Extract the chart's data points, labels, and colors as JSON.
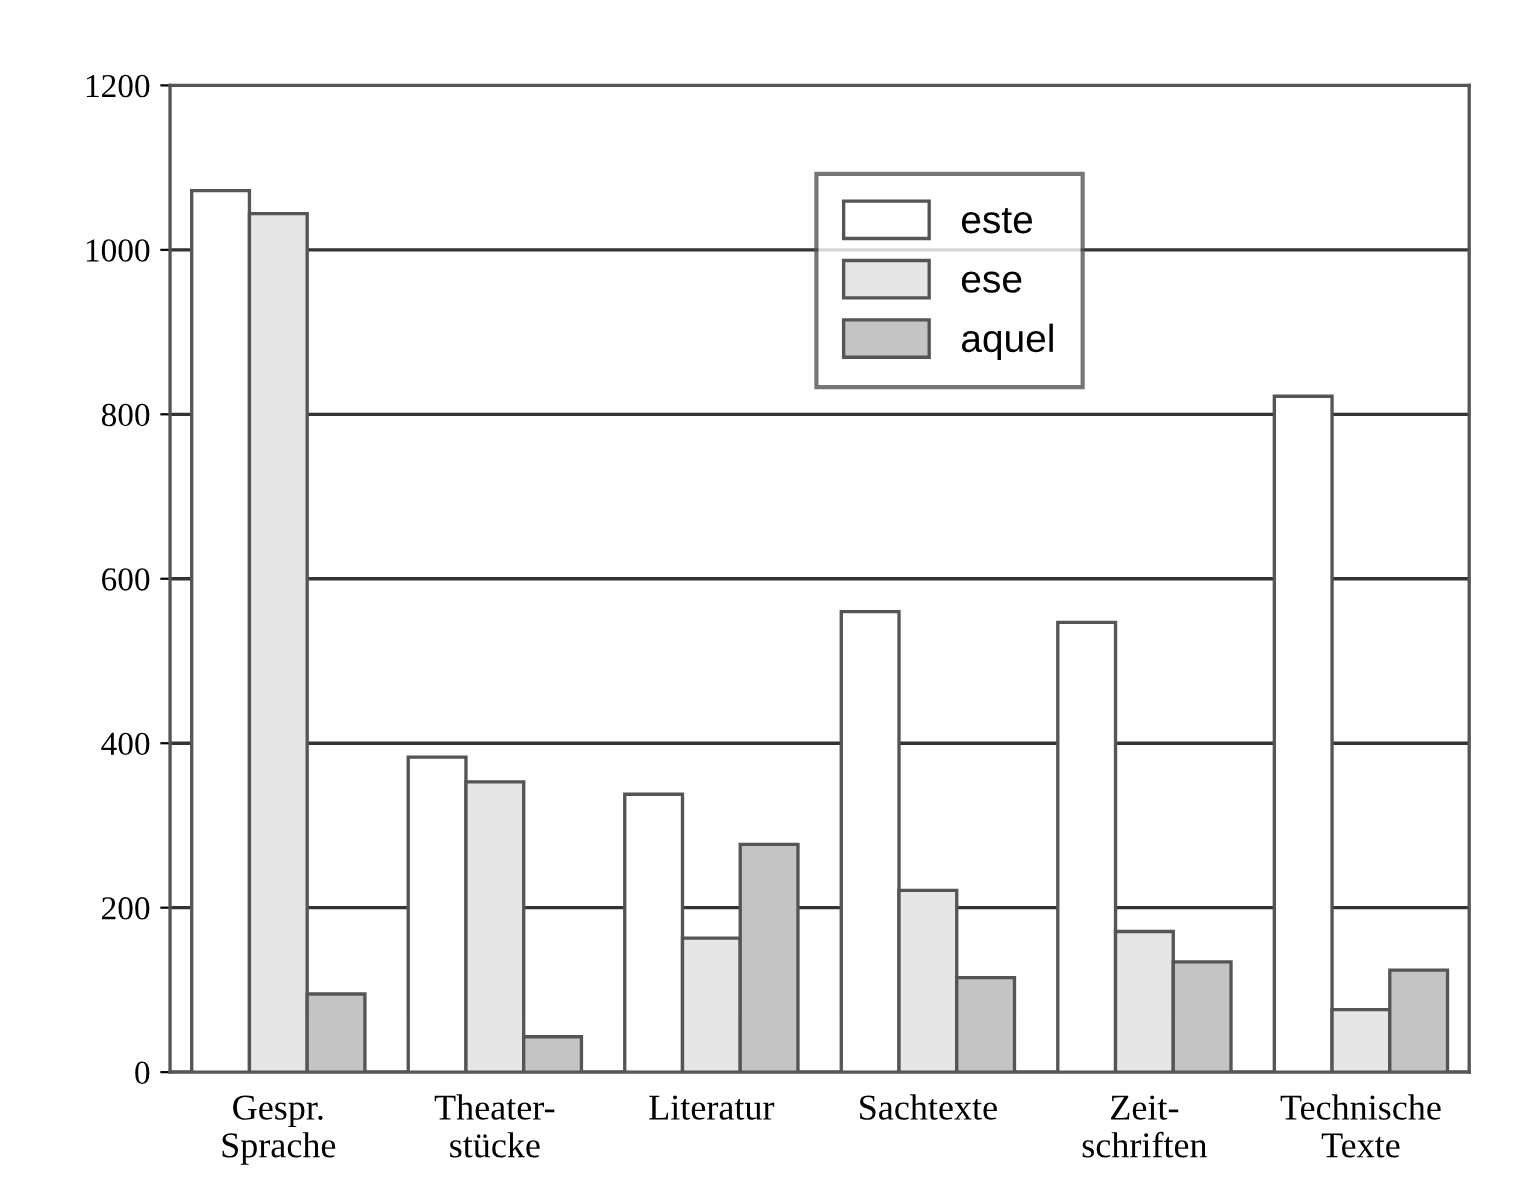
{
  "chart_data": {
    "type": "bar",
    "categories": [
      "Gespr.\nSprache",
      "Theater-\nstücke",
      "Literatur",
      "Sachtexte",
      "Zeit-\nschriften",
      "Technische\nTexte"
    ],
    "series": [
      {
        "name": "este",
        "color": "#ffffff",
        "values": [
          1072,
          383,
          338,
          560,
          547,
          822
        ]
      },
      {
        "name": "ese",
        "color": "#e6e6e6",
        "values": [
          1044,
          353,
          163,
          221,
          171,
          76
        ]
      },
      {
        "name": "aquel",
        "color": "#c4c4c4",
        "values": [
          95,
          43,
          277,
          115,
          134,
          124
        ]
      }
    ],
    "ylim": [
      0,
      1200
    ],
    "yticks": [
      0,
      200,
      400,
      600,
      800,
      1000,
      1200
    ],
    "grid": "y",
    "legend": "top"
  }
}
